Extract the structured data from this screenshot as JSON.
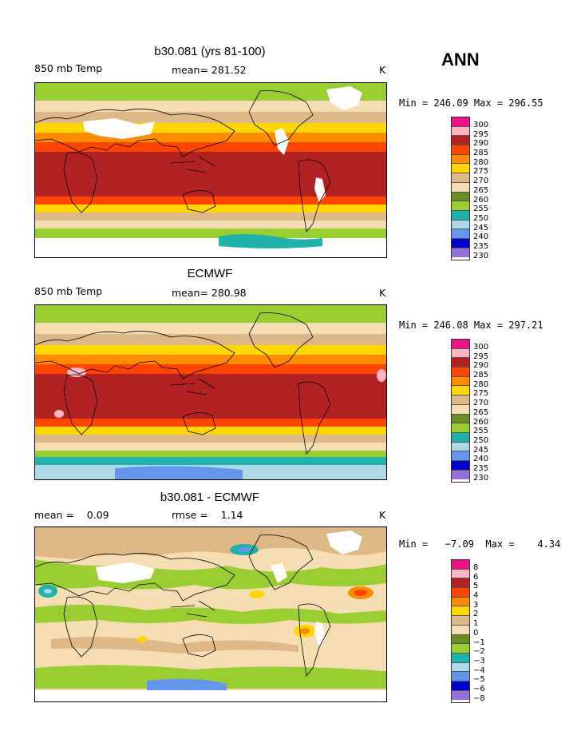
{
  "season": "ANN",
  "panels": [
    {
      "title": "b30.081 (yrs 81-100)",
      "left_label": "850 mb Temp",
      "center_label": "mean= 281.52",
      "units": "K",
      "minmax": "Min = 246.09  Max = 296.55",
      "legend_levels": [
        "300",
        "295",
        "290",
        "285",
        "280",
        "275",
        "270",
        "265",
        "260",
        "255",
        "250",
        "245",
        "240",
        "235",
        "230"
      ]
    },
    {
      "title": "ECMWF",
      "left_label": "850 mb Temp",
      "center_label": "mean= 280.98",
      "units": "K",
      "minmax": "Min = 246.08  Max = 297.21",
      "legend_levels": [
        "300",
        "295",
        "290",
        "285",
        "280",
        "275",
        "270",
        "265",
        "260",
        "255",
        "250",
        "245",
        "240",
        "235",
        "230"
      ]
    },
    {
      "title": "b30.081 - ECMWF",
      "left_label": "mean =    0.09",
      "center_label": "rmse =    1.14",
      "units": "K",
      "minmax": "Min =   −7.09  Max =    4.34",
      "legend_levels": [
        "8",
        "6",
        "5",
        "4",
        "3",
        "2",
        "1",
        "0",
        "−1",
        "−2",
        "−3",
        "−4",
        "−5",
        "−6",
        "−8"
      ]
    }
  ],
  "colors": {
    "scale": [
      "#ee1289",
      "#ffb6c1",
      "#b22222",
      "#ff4500",
      "#ff8c00",
      "#ffd700",
      "#deb887",
      "#f5deb3",
      "#6b8e23",
      "#9acd32",
      "#20b2aa",
      "#add8e6",
      "#6495ed",
      "#0000cd",
      "#9370db"
    ]
  }
}
